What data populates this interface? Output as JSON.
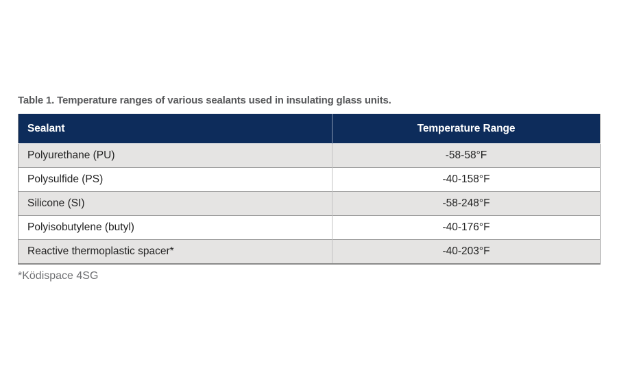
{
  "title": "Table 1. Temperature ranges of various sealants used in insulating glass units.",
  "table": {
    "columns": [
      {
        "label": "Sealant"
      },
      {
        "label": "Temperature Range"
      }
    ],
    "rows": [
      {
        "sealant": "Polyurethane (PU)",
        "temperature_range": "-58-58°F"
      },
      {
        "sealant": "Polysulfide (PS)",
        "temperature_range": "-40-158°F"
      },
      {
        "sealant": "Silicone (SI)",
        "temperature_range": "-58-248°F"
      },
      {
        "sealant": "Polyisobutylene (butyl)",
        "temperature_range": "-40-176°F"
      },
      {
        "sealant": "Reactive thermoplastic spacer*",
        "temperature_range": "-40-203°F"
      }
    ]
  },
  "footnote": "*Ködispace 4SG",
  "colors": {
    "header_bg": "#0d2c5b",
    "header_text": "#ffffff",
    "row_bg": "#ffffff",
    "row_alt_bg": "#e5e4e3",
    "body_text": "#232323",
    "title_text": "#58595b",
    "footnote_text": "#6f7073",
    "border": "#999999"
  },
  "chart_data": {
    "type": "table",
    "title": "Table 1. Temperature ranges of various sealants used in insulating glass units.",
    "columns": [
      "Sealant",
      "Temperature Range"
    ],
    "rows": [
      [
        "Polyurethane (PU)",
        "-58-58°F"
      ],
      [
        "Polysulfide (PS)",
        "-40-158°F"
      ],
      [
        "Silicone (SI)",
        "-58-248°F"
      ],
      [
        "Polyisobutylene (butyl)",
        "-40-176°F"
      ],
      [
        "Reactive thermoplastic spacer*",
        "-40-203°F"
      ]
    ],
    "footnote": "*Ködispace 4SG",
    "layout": {
      "header_style": "navy background, white bold text",
      "row_striping": "odd rows light gray, even rows white",
      "col1_align": "left",
      "col2_align": "center"
    }
  }
}
